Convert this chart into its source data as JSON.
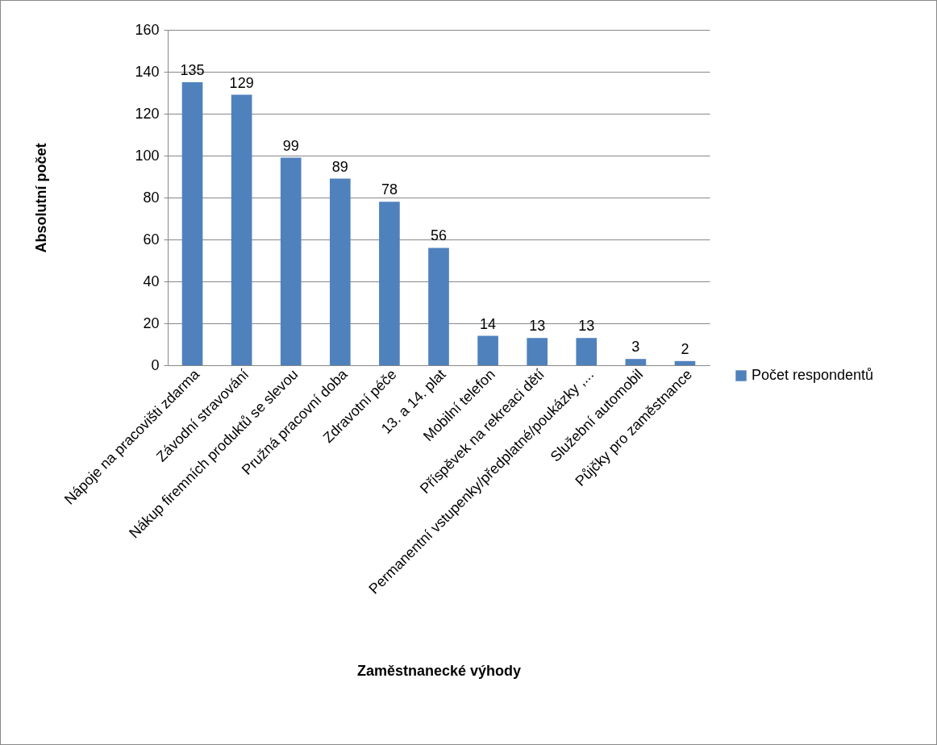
{
  "chart_data": {
    "type": "bar",
    "xlabel": "Zaměstnanecké výhody",
    "ylabel": "Absolutní počet",
    "categories": [
      "Nápoje na pracovišti zdarma",
      "Závodní stravování",
      "Nákup firemních produktů se slevou",
      "Pružná pracovní doba",
      "Zdravotní péče",
      "13. a 14. plat",
      "Mobilní telefon",
      "Příspěvek na rekreaci dětí",
      "Permanentní vstupenky/předplatné/poukázky ,...",
      "Služební automobil",
      "Půjčky pro zaměstnance"
    ],
    "series": [
      {
        "name": "Počet respondentů",
        "color": "#4f81bd",
        "values": [
          135,
          129,
          99,
          89,
          78,
          56,
          14,
          13,
          13,
          3,
          2
        ]
      }
    ],
    "ylim": [
      0,
      160
    ],
    "yticks": [
      0,
      20,
      40,
      60,
      80,
      100,
      120,
      140,
      160
    ],
    "grid": "y",
    "legend": "right",
    "data_labels": true
  }
}
